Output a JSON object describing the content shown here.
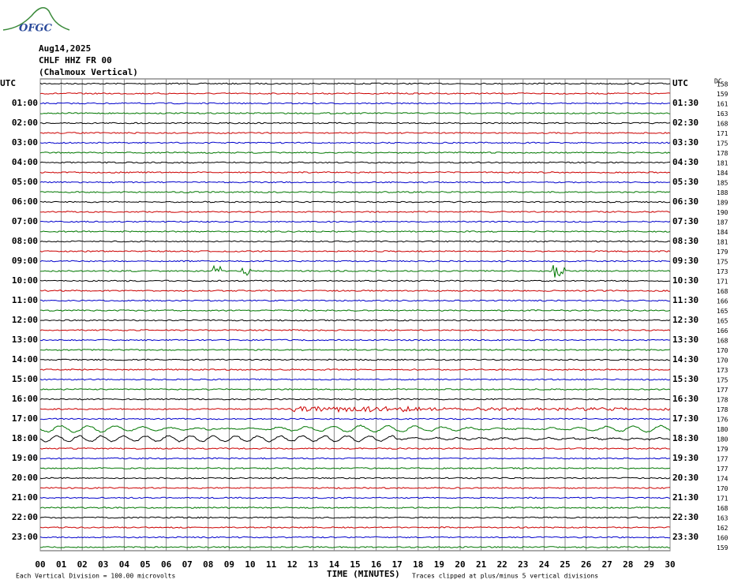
{
  "logo": "OFGC",
  "header": {
    "date": "Aug14,2025",
    "station": "CHLF HHZ FR 00",
    "location": "(Chalmoux Vertical)"
  },
  "left_labels": [
    "UTC",
    "01:00",
    "02:00",
    "03:00",
    "04:00",
    "05:00",
    "06:00",
    "07:00",
    "08:00",
    "09:00",
    "10:00",
    "11:00",
    "12:00",
    "13:00",
    "14:00",
    "15:00",
    "16:00",
    "17:00",
    "18:00",
    "19:00",
    "20:00",
    "21:00",
    "22:00",
    "23:00"
  ],
  "right_labels": [
    "UTC",
    "01:30",
    "02:30",
    "03:30",
    "04:30",
    "05:30",
    "06:30",
    "07:30",
    "08:30",
    "09:30",
    "10:30",
    "11:30",
    "12:30",
    "13:30",
    "14:30",
    "15:30",
    "16:30",
    "17:30",
    "18:30",
    "19:30",
    "20:30",
    "21:30",
    "22:30",
    "23:30"
  ],
  "dc_label": "DC",
  "dc_values": [
    158,
    159,
    161,
    163,
    168,
    171,
    175,
    178,
    181,
    184,
    185,
    188,
    189,
    190,
    187,
    184,
    181,
    179,
    175,
    173,
    171,
    168,
    166,
    165,
    165,
    166,
    168,
    170,
    170,
    173,
    175,
    177,
    178,
    178,
    176,
    180,
    180,
    179,
    177,
    177,
    174,
    170,
    171,
    168,
    163,
    162,
    160,
    159
  ],
  "x_labels": [
    "00",
    "01",
    "02",
    "03",
    "04",
    "05",
    "06",
    "07",
    "08",
    "09",
    "10",
    "11",
    "12",
    "13",
    "14",
    "15",
    "16",
    "17",
    "18",
    "19",
    "20",
    "21",
    "22",
    "23",
    "24",
    "25",
    "26",
    "27",
    "28",
    "29",
    "30"
  ],
  "footer": {
    "division": "Each Vertical Division =  100.00 microvolts",
    "axis_title": "TIME (MINUTES)",
    "clip": "Traces clipped at plus/minus 5 vertical divisions"
  }
}
